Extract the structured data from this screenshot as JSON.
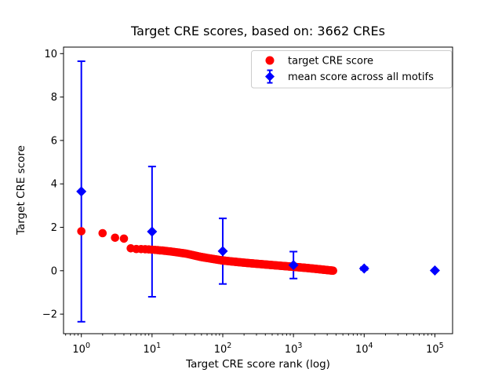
{
  "chart_data": {
    "type": "scatter",
    "title": "Target CRE scores, based on: 3662 CREs",
    "xlabel": "Target CRE score rank (log)",
    "ylabel": "Target CRE score",
    "xscale": "log",
    "yscale": "linear",
    "xlim": [
      0.56,
      178000
    ],
    "ylim": [
      -2.9,
      10.3
    ],
    "x_tick_exponents": [
      0,
      1,
      2,
      3,
      4,
      5
    ],
    "y_ticks": [
      -2,
      0,
      2,
      4,
      6,
      8,
      10
    ],
    "grid": false,
    "background_color": "#ffffff",
    "legend": {
      "position": "upper right",
      "border_color": "#cccccc"
    },
    "series": [
      {
        "name": "target CRE score",
        "kind": "scatter",
        "marker": "circle",
        "color": "#ff0000",
        "n_points": 3662,
        "rank_range": [
          1,
          3662
        ],
        "anchors": [
          [
            1,
            1.82
          ],
          [
            2,
            1.73
          ],
          [
            3,
            1.52
          ],
          [
            4,
            1.48
          ],
          [
            5,
            1.03
          ],
          [
            6,
            1.0
          ],
          [
            8,
            0.99
          ],
          [
            10,
            0.97
          ],
          [
            15,
            0.92
          ],
          [
            20,
            0.87
          ],
          [
            30,
            0.79
          ],
          [
            50,
            0.63
          ],
          [
            70,
            0.55
          ],
          [
            100,
            0.47
          ],
          [
            150,
            0.41
          ],
          [
            200,
            0.37
          ],
          [
            300,
            0.32
          ],
          [
            500,
            0.26
          ],
          [
            700,
            0.22
          ],
          [
            1000,
            0.18
          ],
          [
            1500,
            0.13
          ],
          [
            2000,
            0.09
          ],
          [
            3000,
            0.03
          ],
          [
            3662,
            0.0
          ]
        ],
        "note": "3662 points at integer ranks; values interpolated between anchors in log-rank space"
      },
      {
        "name": "mean score across all motifs",
        "kind": "errorbar",
        "marker": "diamond",
        "color": "#0000ff",
        "x": [
          1,
          10,
          100,
          1000,
          10000,
          100000
        ],
        "y": [
          3.65,
          1.8,
          0.9,
          0.26,
          0.1,
          0.01
        ],
        "yerr": [
          6.0,
          3.0,
          1.51,
          0.62,
          0.06,
          0.02
        ]
      }
    ]
  }
}
